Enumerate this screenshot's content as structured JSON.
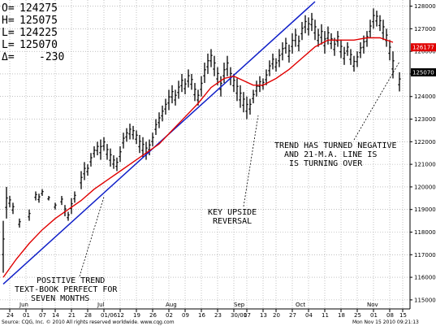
{
  "ohlc_readout": [
    {
      "key": "O=",
      "value": "124275"
    },
    {
      "key": "H=",
      "value": "125075"
    },
    {
      "key": "L=",
      "value": "124225"
    },
    {
      "key": "L=",
      "value": "125070"
    },
    {
      "key": "Δ=",
      "value": "-230"
    }
  ],
  "price_tags": [
    {
      "label": "126177",
      "value": 126177,
      "color": "#e00000"
    },
    {
      "label": "125070",
      "value": 125070,
      "color": "#000000"
    }
  ],
  "annotations": {
    "positive_trend": [
      "POSITIVE TREND",
      "TEXT-BOOK PERFECT FOR",
      "SEVEN MONTHS"
    ],
    "key_reversal": [
      "KEY UPSIDE",
      "REVERSAL"
    ],
    "trend_negative": [
      "TREND HAS TURNED NEGATIVE",
      "AND 21-M.A. LINE IS",
      "IS TURNING OVER"
    ]
  },
  "footer": {
    "left": "Source: CQG, Inc. © 2010 All rights reserved worldwide. www.cqg.com",
    "right": "Mon Nov 15 2010 09:21:13"
  },
  "chart_data": {
    "type": "ohlc",
    "ylim": [
      114600,
      128200
    ],
    "y_ticks": [
      115000,
      116000,
      117000,
      118000,
      119000,
      120000,
      121000,
      122000,
      123000,
      124000,
      125000,
      126000,
      127000,
      128000
    ],
    "y_tick_labels": [
      "115000",
      "116000",
      "117000",
      "118000",
      "119000",
      "120000",
      "121000",
      "122000",
      "123000",
      "124000",
      "125000",
      "126000",
      "127000",
      "128000"
    ],
    "x_ticks": [
      {
        "i": 2,
        "label": "24"
      },
      {
        "i": 7,
        "label": "01"
      },
      {
        "i": 12,
        "label": "07"
      },
      {
        "i": 16,
        "label": "14"
      },
      {
        "i": 21,
        "label": "21"
      },
      {
        "i": 26,
        "label": "28"
      },
      {
        "i": 31,
        "label": "01/06"
      },
      {
        "i": 36,
        "label": "12"
      },
      {
        "i": 41,
        "label": "19"
      },
      {
        "i": 46,
        "label": "26"
      },
      {
        "i": 51,
        "label": "02"
      },
      {
        "i": 56,
        "label": "09"
      },
      {
        "i": 61,
        "label": "16"
      },
      {
        "i": 66,
        "label": "23"
      },
      {
        "i": 71,
        "label": "30/01"
      },
      {
        "i": 75,
        "label": "07"
      },
      {
        "i": 80,
        "label": "13"
      },
      {
        "i": 84,
        "label": "20"
      },
      {
        "i": 89,
        "label": "27"
      },
      {
        "i": 94,
        "label": "04"
      },
      {
        "i": 99,
        "label": "11"
      },
      {
        "i": 104,
        "label": "18"
      },
      {
        "i": 109,
        "label": "25"
      },
      {
        "i": 114,
        "label": "01"
      },
      {
        "i": 119,
        "label": "08"
      },
      {
        "i": 123,
        "label": "15"
      }
    ],
    "months": [
      {
        "i": 5,
        "label": "Jun"
      },
      {
        "i": 29,
        "label": "Jul"
      },
      {
        "i": 50,
        "label": "Aug"
      },
      {
        "i": 71,
        "label": "Sep"
      },
      {
        "i": 90,
        "label": "Oct"
      },
      {
        "i": 112,
        "label": "Nov"
      }
    ],
    "n_bars": 125,
    "bars": [
      {
        "i": 0,
        "h": 118500,
        "l": 116200
      },
      {
        "i": 1,
        "h": 120000,
        "l": 118600
      },
      {
        "i": 2,
        "h": 119600,
        "l": 119100
      },
      {
        "i": 3,
        "h": 119300,
        "l": 118800
      },
      {
        "i": 5,
        "h": 118600,
        "l": 118200
      },
      {
        "i": 8,
        "h": 119000,
        "l": 118500
      },
      {
        "i": 10,
        "h": 119800,
        "l": 119400
      },
      {
        "i": 11,
        "h": 119700,
        "l": 119300
      },
      {
        "i": 12,
        "h": 119900,
        "l": 119600
      },
      {
        "i": 14,
        "h": 119600,
        "l": 119400
      },
      {
        "i": 16,
        "h": 119300,
        "l": 119000
      },
      {
        "i": 18,
        "h": 119600,
        "l": 119200
      },
      {
        "i": 19,
        "h": 119200,
        "l": 118700
      },
      {
        "i": 20,
        "h": 118900,
        "l": 118500
      },
      {
        "i": 21,
        "h": 119500,
        "l": 118800
      },
      {
        "i": 22,
        "h": 119800,
        "l": 119300
      },
      {
        "i": 24,
        "h": 120700,
        "l": 119900
      },
      {
        "i": 25,
        "h": 121100,
        "l": 120300
      },
      {
        "i": 26,
        "h": 121000,
        "l": 120500
      },
      {
        "i": 27,
        "h": 121500,
        "l": 120900
      },
      {
        "i": 28,
        "h": 121800,
        "l": 121300
      },
      {
        "i": 29,
        "h": 122000,
        "l": 121400
      },
      {
        "i": 30,
        "h": 122100,
        "l": 121200
      },
      {
        "i": 31,
        "h": 122200,
        "l": 121600
      },
      {
        "i": 32,
        "h": 121900,
        "l": 121200
      },
      {
        "i": 33,
        "h": 121700,
        "l": 120900
      },
      {
        "i": 34,
        "h": 121400,
        "l": 120800
      },
      {
        "i": 35,
        "h": 121300,
        "l": 120700
      },
      {
        "i": 36,
        "h": 121800,
        "l": 121100
      },
      {
        "i": 37,
        "h": 122400,
        "l": 121700
      },
      {
        "i": 38,
        "h": 122600,
        "l": 122000
      },
      {
        "i": 39,
        "h": 122800,
        "l": 122100
      },
      {
        "i": 40,
        "h": 122700,
        "l": 122100
      },
      {
        "i": 41,
        "h": 122500,
        "l": 121900
      },
      {
        "i": 42,
        "h": 122300,
        "l": 121500
      },
      {
        "i": 43,
        "h": 122200,
        "l": 121300
      },
      {
        "i": 44,
        "h": 122000,
        "l": 121200
      },
      {
        "i": 45,
        "h": 122100,
        "l": 121400
      },
      {
        "i": 46,
        "h": 122400,
        "l": 121800
      },
      {
        "i": 47,
        "h": 123000,
        "l": 122300
      },
      {
        "i": 48,
        "h": 123300,
        "l": 122600
      },
      {
        "i": 49,
        "h": 123600,
        "l": 122900
      },
      {
        "i": 50,
        "h": 123900,
        "l": 123200
      },
      {
        "i": 51,
        "h": 124300,
        "l": 123400
      },
      {
        "i": 52,
        "h": 124500,
        "l": 123700
      },
      {
        "i": 53,
        "h": 124300,
        "l": 123600
      },
      {
        "i": 54,
        "h": 124700,
        "l": 123900
      },
      {
        "i": 55,
        "h": 125000,
        "l": 124200
      },
      {
        "i": 56,
        "h": 124800,
        "l": 124100
      },
      {
        "i": 57,
        "h": 125200,
        "l": 124400
      },
      {
        "i": 58,
        "h": 125000,
        "l": 124300
      },
      {
        "i": 59,
        "h": 124600,
        "l": 123800
      },
      {
        "i": 60,
        "h": 124300,
        "l": 123600
      },
      {
        "i": 61,
        "h": 124900,
        "l": 124000
      },
      {
        "i": 62,
        "h": 125500,
        "l": 124600
      },
      {
        "i": 63,
        "h": 125900,
        "l": 125000
      },
      {
        "i": 64,
        "h": 126100,
        "l": 125300
      },
      {
        "i": 65,
        "h": 125800,
        "l": 124900
      },
      {
        "i": 66,
        "h": 125300,
        "l": 124500
      },
      {
        "i": 67,
        "h": 124900,
        "l": 124000
      },
      {
        "i": 68,
        "h": 125500,
        "l": 124600
      },
      {
        "i": 69,
        "h": 125800,
        "l": 124900
      },
      {
        "i": 70,
        "h": 125300,
        "l": 124500
      },
      {
        "i": 71,
        "h": 125000,
        "l": 124200
      },
      {
        "i": 72,
        "h": 124800,
        "l": 123800
      },
      {
        "i": 73,
        "h": 124500,
        "l": 123500
      },
      {
        "i": 74,
        "h": 124200,
        "l": 123300
      },
      {
        "i": 75,
        "h": 124000,
        "l": 123000
      },
      {
        "i": 76,
        "h": 123900,
        "l": 123200
      },
      {
        "i": 77,
        "h": 124300,
        "l": 123700
      },
      {
        "i": 78,
        "h": 124700,
        "l": 124000
      },
      {
        "i": 79,
        "h": 124900,
        "l": 124200
      },
      {
        "i": 80,
        "h": 124800,
        "l": 124300
      },
      {
        "i": 81,
        "h": 125200,
        "l": 124500
      },
      {
        "i": 82,
        "h": 125600,
        "l": 124900
      },
      {
        "i": 83,
        "h": 125900,
        "l": 125200
      },
      {
        "i": 84,
        "h": 125700,
        "l": 125100
      },
      {
        "i": 85,
        "h": 126100,
        "l": 125300
      },
      {
        "i": 86,
        "h": 126400,
        "l": 125600
      },
      {
        "i": 87,
        "h": 126600,
        "l": 125900
      },
      {
        "i": 88,
        "h": 126300,
        "l": 125500
      },
      {
        "i": 89,
        "h": 126800,
        "l": 125900
      },
      {
        "i": 90,
        "h": 127000,
        "l": 126200
      },
      {
        "i": 91,
        "h": 126700,
        "l": 126000
      },
      {
        "i": 92,
        "h": 127300,
        "l": 126500
      },
      {
        "i": 93,
        "h": 127600,
        "l": 126800
      },
      {
        "i": 94,
        "h": 127500,
        "l": 126700
      },
      {
        "i": 95,
        "h": 127700,
        "l": 126900
      },
      {
        "i": 96,
        "h": 127400,
        "l": 126500
      },
      {
        "i": 97,
        "h": 127000,
        "l": 126200
      },
      {
        "i": 98,
        "h": 127200,
        "l": 126300
      },
      {
        "i": 99,
        "h": 126900,
        "l": 125900
      },
      {
        "i": 100,
        "h": 127100,
        "l": 126300
      },
      {
        "i": 101,
        "h": 126800,
        "l": 126100
      },
      {
        "i": 102,
        "h": 126600,
        "l": 125800
      },
      {
        "i": 103,
        "h": 126900,
        "l": 126200
      },
      {
        "i": 104,
        "h": 126500,
        "l": 125700
      },
      {
        "i": 105,
        "h": 126200,
        "l": 125400
      },
      {
        "i": 106,
        "h": 126400,
        "l": 125800
      },
      {
        "i": 107,
        "h": 126100,
        "l": 125400
      },
      {
        "i": 108,
        "h": 125800,
        "l": 125100
      },
      {
        "i": 109,
        "h": 126000,
        "l": 125300
      },
      {
        "i": 110,
        "h": 126400,
        "l": 125700
      },
      {
        "i": 111,
        "h": 126700,
        "l": 125900
      },
      {
        "i": 112,
        "h": 126900,
        "l": 126200
      },
      {
        "i": 113,
        "h": 127400,
        "l": 126600
      },
      {
        "i": 114,
        "h": 127900,
        "l": 127000
      },
      {
        "i": 115,
        "h": 127800,
        "l": 127100
      },
      {
        "i": 116,
        "h": 127600,
        "l": 126900
      },
      {
        "i": 117,
        "h": 127400,
        "l": 126500
      },
      {
        "i": 118,
        "h": 127000,
        "l": 126200
      },
      {
        "i": 119,
        "h": 126500,
        "l": 125600
      },
      {
        "i": 120,
        "h": 126000,
        "l": 124800
      },
      {
        "i": 122,
        "h": 125075,
        "l": 124225
      }
    ],
    "ma21": [
      [
        0,
        116000
      ],
      [
        4,
        116800
      ],
      [
        8,
        117500
      ],
      [
        12,
        118100
      ],
      [
        16,
        118600
      ],
      [
        20,
        119000
      ],
      [
        24,
        119400
      ],
      [
        28,
        119900
      ],
      [
        32,
        120300
      ],
      [
        36,
        120700
      ],
      [
        40,
        121100
      ],
      [
        44,
        121500
      ],
      [
        48,
        121900
      ],
      [
        52,
        122500
      ],
      [
        56,
        123100
      ],
      [
        60,
        123700
      ],
      [
        64,
        124400
      ],
      [
        68,
        124800
      ],
      [
        71,
        124900
      ],
      [
        74,
        124700
      ],
      [
        77,
        124500
      ],
      [
        80,
        124500
      ],
      [
        84,
        124800
      ],
      [
        88,
        125200
      ],
      [
        92,
        125700
      ],
      [
        96,
        126200
      ],
      [
        100,
        126500
      ],
      [
        104,
        126500
      ],
      [
        108,
        126500
      ],
      [
        112,
        126600
      ],
      [
        116,
        126600
      ],
      [
        120,
        126400
      ]
    ],
    "trendline": [
      [
        0,
        115700
      ],
      [
        96,
        128200
      ]
    ]
  }
}
